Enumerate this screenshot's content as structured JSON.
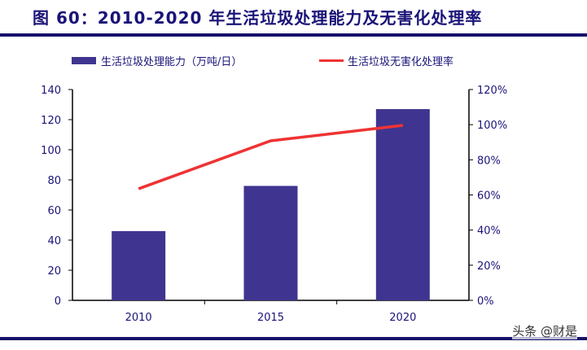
{
  "chart_data": {
    "type": "bar+line",
    "title": "图 60：2010-2020 年生活垃圾处理能力及无害化处理率",
    "categories": [
      "2010",
      "2015",
      "2020"
    ],
    "series": [
      {
        "name": "生活垃圾处理能力（万吨/日）",
        "type": "bar",
        "axis": "left",
        "color": "#3f3590",
        "values": [
          46,
          76,
          127
        ]
      },
      {
        "name": "生活垃圾无害化处理率",
        "type": "line",
        "axis": "right",
        "color": "#ee3333",
        "values": [
          63.5,
          90.8,
          99.6
        ]
      }
    ],
    "y_left": {
      "range": [
        0,
        140
      ],
      "ticks": [
        "0",
        "20",
        "40",
        "60",
        "80",
        "100",
        "120",
        "140"
      ]
    },
    "y_right": {
      "range": [
        0,
        120
      ],
      "ticks": [
        "0%",
        "20%",
        "40%",
        "60%",
        "80%",
        "100%",
        "120%"
      ]
    },
    "grid": false,
    "legend": "top"
  },
  "watermark": "头条 @财是"
}
